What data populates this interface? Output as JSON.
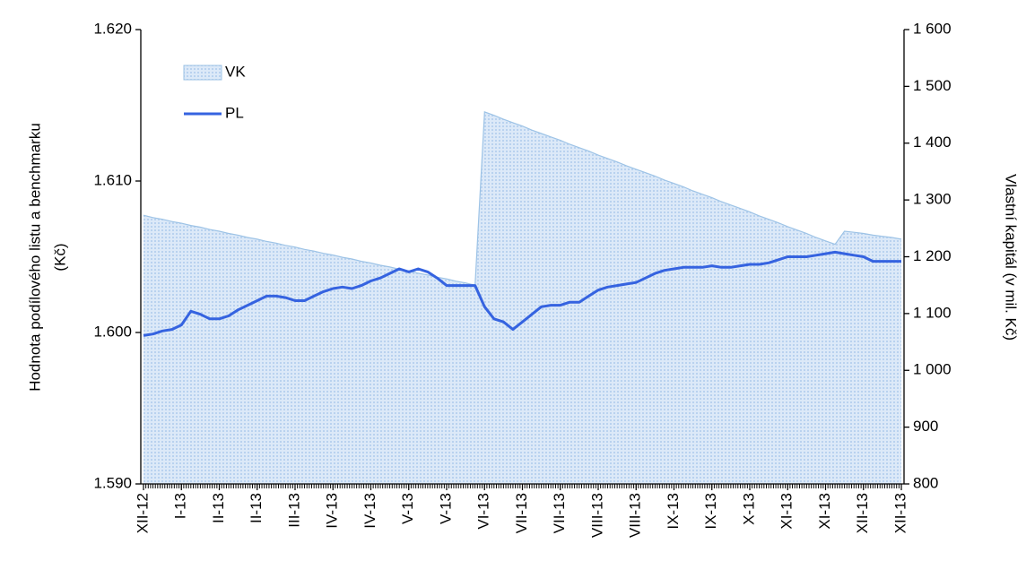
{
  "chart_data": {
    "type": "line",
    "ylabel": [
      "Hodnota podílového listu a benchmarku",
      "(Kč)"
    ],
    "y2label": "Vlastní kapitál (v mil. Kč)",
    "legend": "upper left",
    "categories": [
      "XII-12",
      null,
      null,
      null,
      "I-13",
      null,
      null,
      null,
      "II-13",
      null,
      null,
      null,
      "II-13",
      null,
      null,
      null,
      "III-13",
      null,
      null,
      null,
      "IV-13",
      null,
      null,
      null,
      "IV-13",
      null,
      null,
      null,
      "V-13",
      null,
      null,
      null,
      "V-13",
      null,
      null,
      null,
      "VI-13",
      null,
      null,
      null,
      "VII-13",
      null,
      null,
      null,
      "VII-13",
      null,
      null,
      null,
      "VIII-13",
      null,
      null,
      null,
      "VIII-13",
      null,
      null,
      null,
      "IX-13",
      null,
      null,
      null,
      "IX-13",
      null,
      null,
      null,
      "X-13",
      null,
      null,
      null,
      "XI-13",
      null,
      null,
      null,
      "XI-13",
      null,
      null,
      null,
      "XII-13",
      null,
      null,
      null,
      "XII-13"
    ],
    "ylim": [
      1.59,
      1.62
    ],
    "yticks": [
      {
        "value": 1.59,
        "label": "1.590"
      },
      {
        "value": 1.6,
        "label": "1.600"
      },
      {
        "value": 1.61,
        "label": "1.610"
      },
      {
        "value": 1.62,
        "label": "1.620"
      }
    ],
    "y2lim": [
      800,
      1600
    ],
    "y2ticks": [
      800,
      900,
      {
        "value": 1000,
        "label": "1 000"
      },
      {
        "value": 1100,
        "label": "1 100"
      },
      {
        "value": 1200,
        "label": "1 200"
      },
      {
        "value": 1300,
        "label": "1 300"
      },
      {
        "value": 1400,
        "label": "1 400"
      },
      {
        "value": 1500,
        "label": "1 500"
      },
      {
        "value": 1600,
        "label": "1 600"
      }
    ],
    "series": [
      {
        "name": "VK",
        "type": "area",
        "axis": "y2",
        "color": "#d6e6f7",
        "edge": "#9dc3e6",
        "values": [
          1273,
          1269,
          1266,
          1262,
          1259,
          1255,
          1252,
          1248,
          1245,
          1241,
          1238,
          1234,
          1231,
          1227,
          1224,
          1220,
          1217,
          1213,
          1210,
          1206,
          1203,
          1199,
          1196,
          1192,
          1189,
          1185,
          1182,
          1178,
          1175,
          1171,
          1168,
          1164,
          1161,
          1157,
          1154,
          1150,
          1455,
          1449,
          1442,
          1436,
          1430,
          1423,
          1417,
          1411,
          1405,
          1398,
          1392,
          1386,
          1379,
          1373,
          1367,
          1360,
          1354,
          1348,
          1342,
          1335,
          1329,
          1323,
          1316,
          1310,
          1304,
          1297,
          1291,
          1285,
          1279,
          1272,
          1266,
          1260,
          1253,
          1247,
          1241,
          1234,
          1228,
          1222,
          1245,
          1243,
          1241,
          1238,
          1236,
          1234,
          1231
        ]
      },
      {
        "name": "PL",
        "type": "line",
        "color": "#3563e0",
        "values": [
          1.5998,
          1.5999,
          1.6001,
          1.6002,
          1.6005,
          1.6014,
          1.6012,
          1.6009,
          1.6009,
          1.6011,
          1.6015,
          1.6018,
          1.6021,
          1.6024,
          1.6024,
          1.6023,
          1.6021,
          1.6021,
          1.6024,
          1.6027,
          1.6029,
          1.603,
          1.6029,
          1.6031,
          1.6034,
          1.6036,
          1.6039,
          1.6042,
          1.604,
          1.6042,
          1.604,
          1.6036,
          1.6031,
          1.6031,
          1.6031,
          1.6031,
          1.6017,
          1.6009,
          1.6007,
          1.6002,
          1.6007,
          1.6012,
          1.6017,
          1.6018,
          1.6018,
          1.602,
          1.602,
          1.6024,
          1.6028,
          1.603,
          1.6031,
          1.6032,
          1.6033,
          1.6036,
          1.6039,
          1.6041,
          1.6042,
          1.6043,
          1.6043,
          1.6043,
          1.6044,
          1.6043,
          1.6043,
          1.6044,
          1.6045,
          1.6045,
          1.6046,
          1.6048,
          1.605,
          1.605,
          1.605,
          1.6051,
          1.6052,
          1.6053,
          1.6052,
          1.6051,
          1.605,
          1.6047,
          1.6047,
          1.6047,
          1.6047
        ]
      }
    ]
  }
}
